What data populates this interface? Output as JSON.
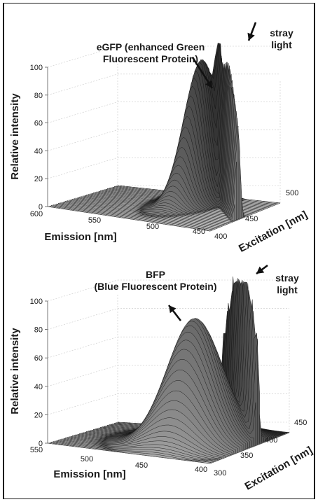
{
  "chart_data": [
    {
      "type": "surface",
      "zlabel": "Relative intensity",
      "xlabel": "Emission [nm]",
      "ylabel": "Excitation [nm]",
      "z_ticks": [
        "0",
        "20",
        "40",
        "60",
        "80",
        "100"
      ],
      "x_ticks": [
        "600",
        "550",
        "500",
        "450"
      ],
      "y_ticks": [
        "400",
        "450",
        "500"
      ],
      "zlim": [
        0,
        100
      ],
      "xlim": [
        600,
        440
      ],
      "ylim": [
        400,
        500
      ],
      "annotations": [
        {
          "text": "eGFP (enhanced Green\nFluorescent Protein)"
        },
        {
          "text": "stray\nlight"
        }
      ],
      "peaks": [
        {
          "excitation": 488,
          "emission": 509,
          "intensity": 100
        },
        {
          "excitation": 470,
          "emission": 455,
          "intensity": 105
        }
      ]
    },
    {
      "type": "surface",
      "zlabel": "Relative intensity",
      "xlabel": "Emission [nm]",
      "ylabel": "Excitation [nm]",
      "z_ticks": [
        "0",
        "20",
        "40",
        "60",
        "80",
        "100"
      ],
      "x_ticks": [
        "550",
        "500",
        "450",
        "400"
      ],
      "y_ticks": [
        "300",
        "350",
        "400",
        "450"
      ],
      "zlim": [
        0,
        100
      ],
      "xlim": [
        550,
        390
      ],
      "ylim": [
        300,
        450
      ],
      "annotations": [
        {
          "text": "BFP\n(Blue Fluorescent Protein)"
        },
        {
          "text": "stray\nlight"
        }
      ],
      "peaks": [
        {
          "excitation": 380,
          "emission": 445,
          "intensity": 87
        },
        {
          "excitation": 420,
          "emission": 420,
          "intensity": 110
        }
      ]
    }
  ]
}
